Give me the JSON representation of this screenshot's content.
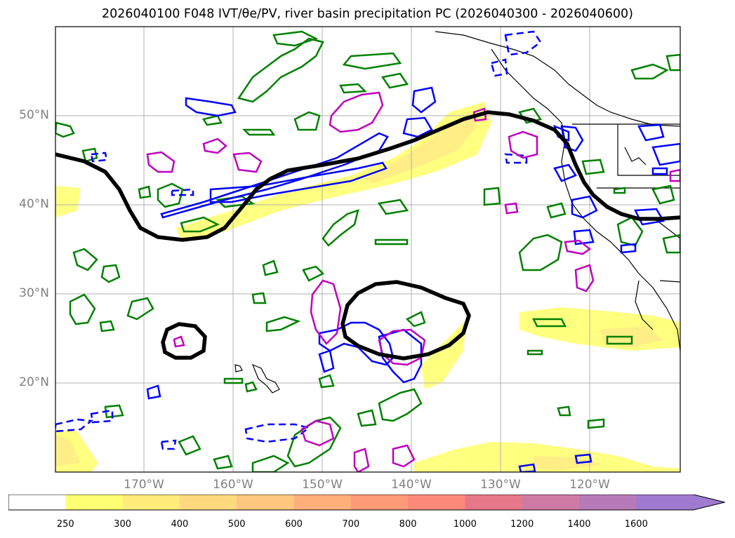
{
  "title": "2026040100 F048 IVT/θe/PV, river basin precipitation PC (2026040300 - 2026040600)",
  "map": {
    "lat_labels": [
      "50°N",
      "40°N",
      "30°N",
      "20°N"
    ],
    "lon_labels": [
      "170°W",
      "160°W",
      "150°W",
      "140°W",
      "130°W",
      "120°W"
    ],
    "contour_colors": {
      "ivt": "#000000",
      "theta_e_solid": "#0000ff",
      "pv_outline": "#008000",
      "precip_outline": "#c000c0",
      "ivt_fill_light": "#ffff66",
      "ivt_fill_mid": "#ffe680"
    }
  },
  "colorbar": {
    "units_labels": [
      "250",
      "300",
      "400",
      "500",
      "600",
      "700",
      "800",
      "1000",
      "1200",
      "1400",
      "1600"
    ],
    "colors": [
      "#ffffff",
      "#ffff73",
      "#ffec7a",
      "#ffd97e",
      "#ffc77e",
      "#ffb07a",
      "#ff9a78",
      "#fc8a7a",
      "#e6788a",
      "#cf7aa5",
      "#b77ab8",
      "#9f7ad0"
    ],
    "extend": "max"
  }
}
